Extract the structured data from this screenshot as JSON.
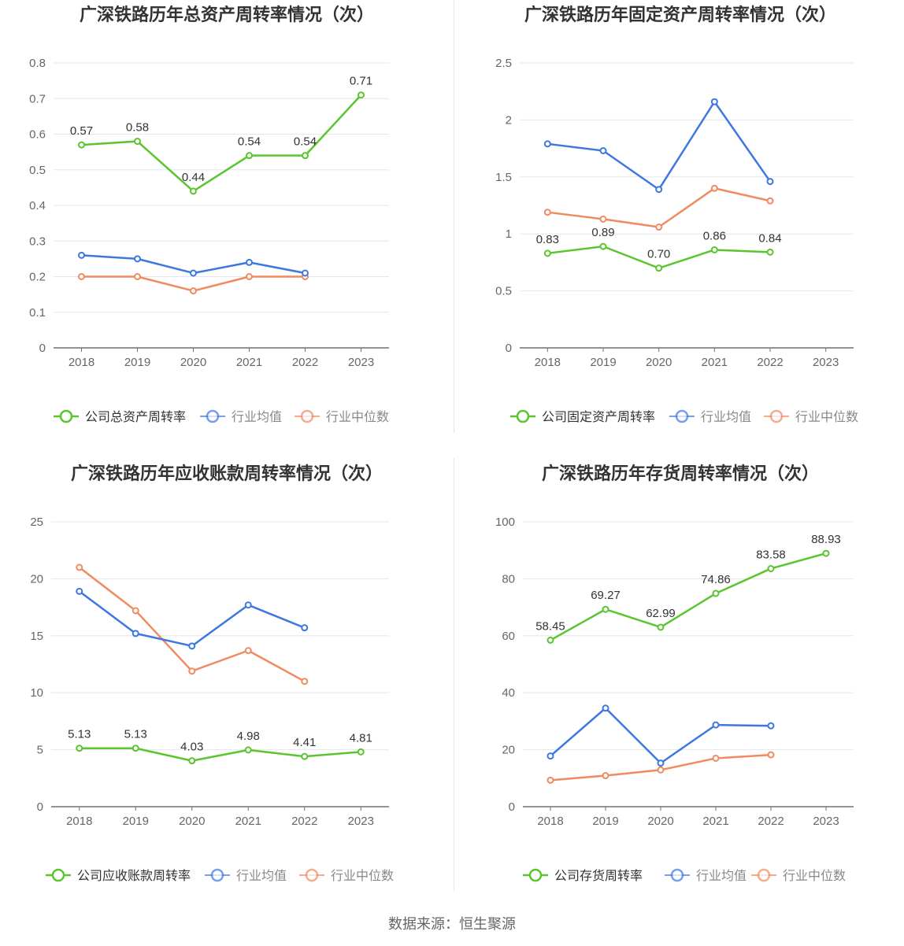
{
  "source": "数据来源：恒生聚源",
  "colors": {
    "company": "#5ac52e",
    "avg": "#3d77e0",
    "median": "#f08a5f",
    "grid": "#e6e6f0",
    "axis": "#666666",
    "text": "#333333"
  },
  "chart_data": [
    {
      "type": "line",
      "title": "广深铁路历年总资产周转率情况（次）",
      "categories": [
        "2018",
        "2019",
        "2020",
        "2021",
        "2022",
        "2023"
      ],
      "ylim": [
        0,
        0.8
      ],
      "yticks": [
        "0",
        "0.1",
        "0.2",
        "0.3",
        "0.4",
        "0.5",
        "0.6",
        "0.7",
        "0.8"
      ],
      "series": [
        {
          "name": "公司总资产周转率",
          "key": "company",
          "values": [
            0.57,
            0.58,
            0.44,
            0.54,
            0.54,
            0.71
          ],
          "labels": [
            "0.57",
            "0.58",
            "0.44",
            "0.54",
            "0.54",
            "0.71"
          ]
        },
        {
          "name": "行业均值",
          "key": "avg",
          "values": [
            0.26,
            0.25,
            0.21,
            0.24,
            0.21,
            null
          ]
        },
        {
          "name": "行业中位数",
          "key": "median",
          "values": [
            0.2,
            0.2,
            0.16,
            0.2,
            0.2,
            null
          ]
        }
      ]
    },
    {
      "type": "line",
      "title": "广深铁路历年固定资产周转率情况（次）",
      "categories": [
        "2018",
        "2019",
        "2020",
        "2021",
        "2022",
        "2023"
      ],
      "ylim": [
        0,
        2.5
      ],
      "yticks": [
        "0",
        "0.5",
        "1",
        "1.5",
        "2",
        "2.5"
      ],
      "series": [
        {
          "name": "公司固定资产周转率",
          "key": "company",
          "values": [
            0.83,
            0.89,
            0.7,
            0.86,
            0.84,
            null
          ],
          "labels": [
            "0.83",
            "0.89",
            "0.70",
            "0.86",
            "0.84",
            null
          ]
        },
        {
          "name": "行业均值",
          "key": "avg",
          "values": [
            1.79,
            1.73,
            1.39,
            2.16,
            1.46,
            null
          ]
        },
        {
          "name": "行业中位数",
          "key": "median",
          "values": [
            1.19,
            1.13,
            1.06,
            1.4,
            1.29,
            null
          ]
        }
      ]
    },
    {
      "type": "line",
      "title": "广深铁路历年应收账款周转率情况（次）",
      "categories": [
        "2018",
        "2019",
        "2020",
        "2021",
        "2022",
        "2023"
      ],
      "ylim": [
        0,
        25
      ],
      "yticks": [
        "0",
        "5",
        "10",
        "15",
        "20",
        "25"
      ],
      "series": [
        {
          "name": "公司应收账款周转率",
          "key": "company",
          "values": [
            5.13,
            5.13,
            4.03,
            4.98,
            4.41,
            4.81
          ],
          "labels": [
            "5.13",
            "5.13",
            "4.03",
            "4.98",
            "4.41",
            "4.81"
          ]
        },
        {
          "name": "行业均值",
          "key": "avg",
          "values": [
            18.9,
            15.2,
            14.1,
            17.7,
            15.7,
            null
          ]
        },
        {
          "name": "行业中位数",
          "key": "median",
          "values": [
            21.0,
            17.2,
            11.9,
            13.7,
            11.0,
            null
          ]
        }
      ]
    },
    {
      "type": "line",
      "title": "广深铁路历年存货周转率情况（次）",
      "categories": [
        "2018",
        "2019",
        "2020",
        "2021",
        "2022",
        "2023"
      ],
      "ylim": [
        0,
        100
      ],
      "yticks": [
        "0",
        "20",
        "40",
        "60",
        "80",
        "100"
      ],
      "series": [
        {
          "name": "公司存货周转率",
          "key": "company",
          "values": [
            58.45,
            69.27,
            62.99,
            74.86,
            83.58,
            88.93
          ],
          "labels": [
            "58.45",
            "69.27",
            "62.99",
            "74.86",
            "83.58",
            "88.93"
          ]
        },
        {
          "name": "行业均值",
          "key": "avg",
          "values": [
            17.8,
            34.6,
            15.3,
            28.7,
            28.4,
            null
          ]
        },
        {
          "name": "行业中位数",
          "key": "median",
          "values": [
            9.3,
            10.9,
            12.9,
            17.0,
            18.2,
            null
          ]
        }
      ]
    }
  ]
}
